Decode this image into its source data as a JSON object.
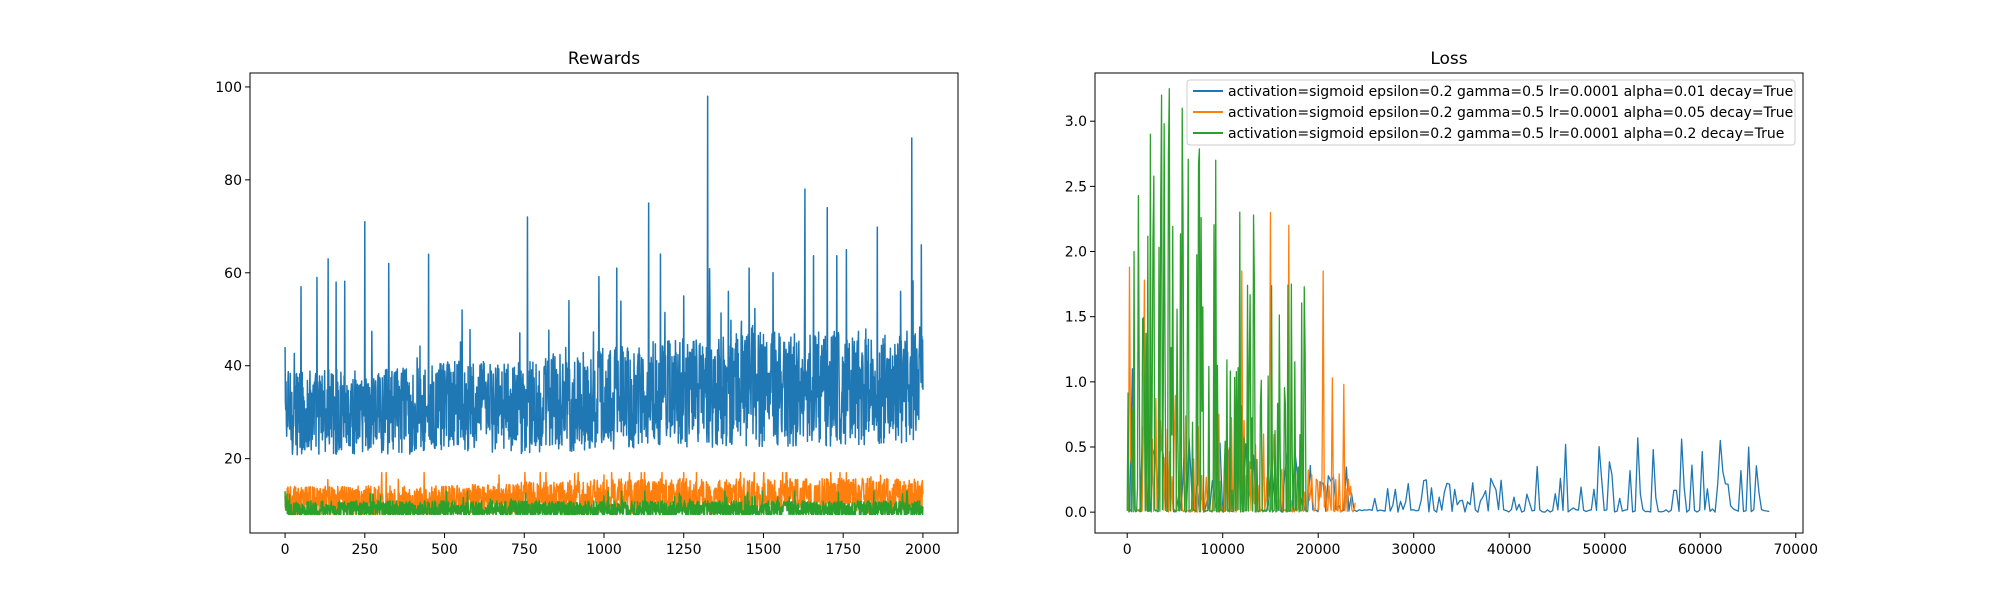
{
  "chart_data": [
    {
      "type": "line",
      "title": "Rewards",
      "xlabel": "",
      "ylabel": "",
      "xlim": [
        -110,
        2110
      ],
      "ylim": [
        4,
        103
      ],
      "xticks": [
        0,
        250,
        500,
        750,
        1000,
        1250,
        1500,
        1750,
        2000
      ],
      "yticks": [
        20,
        40,
        60,
        80,
        100
      ],
      "grid": false,
      "x": {
        "start": 0,
        "end": 2000,
        "step": 1
      },
      "series": [
        {
          "color": "#1f77b4",
          "trend": [
            [
              0,
              30
            ],
            [
              250,
              30
            ],
            [
              500,
              31
            ],
            [
              750,
              31
            ],
            [
              1000,
              33
            ],
            [
              1250,
              34
            ],
            [
              1500,
              35
            ],
            [
              1750,
              35
            ],
            [
              2000,
              35
            ]
          ],
          "range": [
            17,
            98
          ],
          "spikes": [
            [
              0,
              44
            ],
            [
              50,
              57
            ],
            [
              100,
              59
            ],
            [
              135,
              63
            ],
            [
              160,
              58
            ],
            [
              250,
              71
            ],
            [
              325,
              62
            ],
            [
              450,
              64
            ],
            [
              555,
              52
            ],
            [
              760,
              72
            ],
            [
              890,
              54
            ],
            [
              1040,
              61
            ],
            [
              1140,
              75
            ],
            [
              1250,
              55
            ],
            [
              1325,
              98
            ],
            [
              1390,
              56
            ],
            [
              1455,
              61
            ],
            [
              1530,
              60
            ],
            [
              1630,
              78
            ],
            [
              1700,
              74
            ],
            [
              1760,
              65
            ],
            [
              1930,
              56
            ],
            [
              1965,
              89
            ],
            [
              1995,
              66
            ]
          ]
        },
        {
          "color": "#ff7f0e",
          "trend": [
            [
              0,
              11
            ],
            [
              500,
              11
            ],
            [
              1000,
              12
            ],
            [
              1500,
              12
            ],
            [
              2000,
              12
            ]
          ],
          "range": [
            8,
            17
          ],
          "spikes": [
            [
              1080,
              17
            ],
            [
              1290,
              17
            ],
            [
              1560,
              17
            ],
            [
              1760,
              17
            ]
          ]
        },
        {
          "color": "#2ca02c",
          "trend": [
            [
              0,
              9
            ],
            [
              2000,
              9
            ]
          ],
          "range": [
            8,
            13
          ],
          "spikes": [
            [
              0,
              13
            ],
            [
              300,
              12
            ],
            [
              1000,
              12
            ],
            [
              1600,
              11
            ]
          ]
        }
      ]
    },
    {
      "type": "line",
      "title": "Loss",
      "xlabel": "",
      "ylabel": "",
      "xlim": [
        -3370,
        70760
      ],
      "ylim": [
        -0.16,
        3.37
      ],
      "xticks": [
        0,
        10000,
        20000,
        30000,
        40000,
        50000,
        60000,
        70000
      ],
      "yticks": [
        0.0,
        0.5,
        1.0,
        1.5,
        2.0,
        2.5,
        3.0
      ],
      "grid": false,
      "legend_position": "top-right",
      "series": [
        {
          "name": "activation=sigmoid epsilon=0.2 gamma=0.5 lr=0.0001 alpha=0.01 decay=True",
          "color": "#1f77b4",
          "x": {
            "start": 0,
            "end": 67400,
            "step": 270
          },
          "envelope": [
            [
              0,
              0.7
            ],
            [
              5000,
              0.6
            ],
            [
              15000,
              0.55
            ],
            [
              24000,
              0.4
            ],
            [
              24500,
              0.3
            ],
            [
              30000,
              0.25
            ],
            [
              40000,
              0.3
            ],
            [
              45000,
              0.5
            ],
            [
              55000,
              0.55
            ],
            [
              67400,
              0.5
            ]
          ],
          "spikes": [
            [
              500,
              1.1
            ],
            [
              46000,
              0.52
            ],
            [
              53500,
              0.57
            ],
            [
              58000,
              0.56
            ],
            [
              62000,
              0.55
            ]
          ]
        },
        {
          "name": "activation=sigmoid epsilon=0.2 gamma=0.5 lr=0.0001 alpha=0.05 decay=True",
          "color": "#ff7f0e",
          "x": {
            "start": 0,
            "end": 23900,
            "step": 120
          },
          "envelope": [
            [
              0,
              1.0
            ],
            [
              10000,
              0.8
            ],
            [
              18000,
              0.5
            ],
            [
              19000,
              0.35
            ],
            [
              23900,
              0.32
            ]
          ],
          "spikes": [
            [
              200,
              1.88
            ],
            [
              1800,
              1.78
            ],
            [
              12000,
              1.85
            ],
            [
              15000,
              2.3
            ],
            [
              16900,
              2.2
            ],
            [
              20500,
              1.85
            ],
            [
              21500,
              1.03
            ],
            [
              22700,
              0.98
            ]
          ]
        },
        {
          "name": "activation=sigmoid epsilon=0.2 gamma=0.5 lr=0.0001 alpha=0.2 decay=True",
          "color": "#2ca02c",
          "x": {
            "start": 0,
            "end": 18900,
            "step": 90
          },
          "envelope": [
            [
              0,
              2.0
            ],
            [
              2000,
              2.9
            ],
            [
              4500,
              3.2
            ],
            [
              7000,
              3.0
            ],
            [
              10000,
              2.6
            ],
            [
              13000,
              2.2
            ],
            [
              15500,
              2.0
            ],
            [
              18900,
              1.7
            ]
          ],
          "spikes": [
            [
              700,
              2.0
            ],
            [
              2400,
              2.9
            ],
            [
              3600,
              3.2
            ],
            [
              4400,
              3.25
            ],
            [
              5800,
              3.1
            ],
            [
              9300,
              2.7
            ],
            [
              13200,
              2.28
            ],
            [
              17200,
              1.75
            ]
          ]
        }
      ]
    }
  ]
}
